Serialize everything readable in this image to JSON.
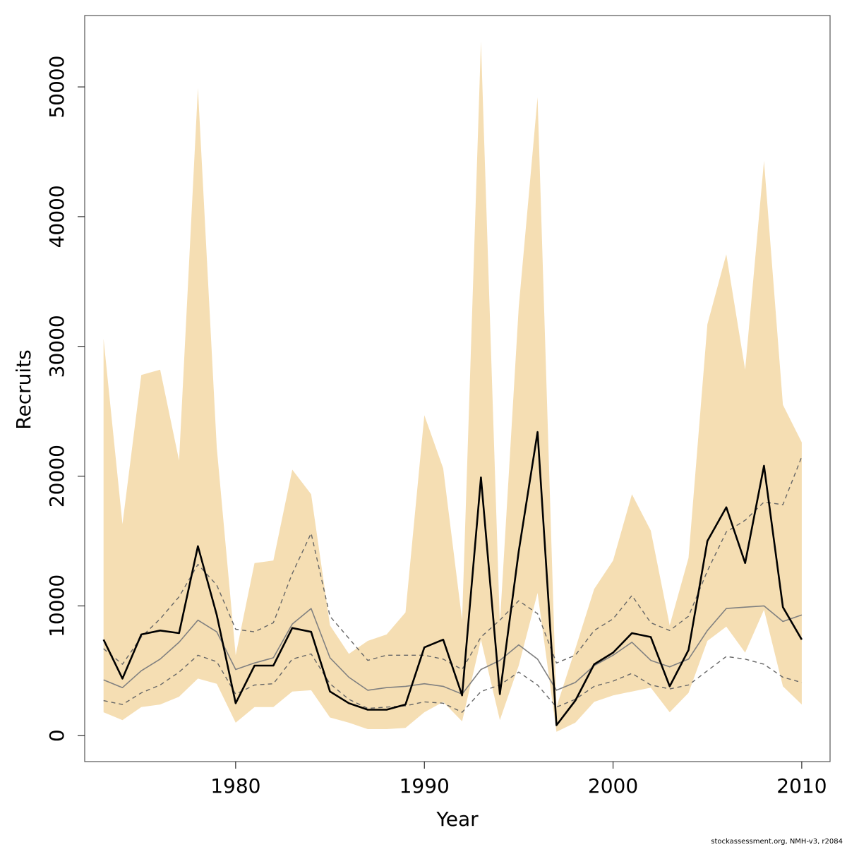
{
  "chart_data": {
    "type": "line",
    "xlabel": "Year",
    "ylabel": "Recruits",
    "xlim": [
      1972,
      2011.5
    ],
    "ylim": [
      -2000,
      55500
    ],
    "xticks": [
      1980,
      1990,
      2000,
      2010
    ],
    "yticks": [
      0,
      10000,
      20000,
      30000,
      40000,
      50000
    ],
    "grid": false,
    "x": [
      1973,
      1974,
      1975,
      1976,
      1977,
      1978,
      1979,
      1980,
      1981,
      1982,
      1983,
      1984,
      1985,
      1986,
      1987,
      1988,
      1989,
      1990,
      1991,
      1992,
      1993,
      1994,
      1995,
      1996,
      1997,
      1998,
      1999,
      2000,
      2001,
      2002,
      2003,
      2004,
      2005,
      2006,
      2007,
      2008,
      2009,
      2010
    ],
    "band": {
      "lower": [
        1800,
        1200,
        2200,
        2400,
        3000,
        4400,
        4000,
        1000,
        2200,
        2200,
        3400,
        3500,
        1400,
        1000,
        500,
        500,
        600,
        1800,
        2600,
        1100,
        7400,
        1200,
        5400,
        11000,
        300,
        1000,
        2600,
        3100,
        3400,
        3700,
        1800,
        3300,
        7300,
        8400,
        6400,
        9700,
        3800,
        2400
      ],
      "upper": [
        30600,
        16300,
        27800,
        28200,
        21200,
        49900,
        22200,
        6200,
        13300,
        13500,
        20500,
        18600,
        8500,
        6300,
        7300,
        7800,
        9500,
        24700,
        20600,
        8900,
        53500,
        8600,
        33000,
        49200,
        2200,
        6700,
        11300,
        13500,
        18600,
        15800,
        8500,
        13700,
        31700,
        37100,
        28200,
        44300,
        25500,
        22600
      ]
    },
    "series": [
      {
        "values": [
          7400,
          4400,
          7800,
          8100,
          7900,
          14600,
          9300,
          2500,
          5400,
          5400,
          8300,
          8000,
          3400,
          2500,
          2000,
          2000,
          2400,
          6800,
          7400,
          3100,
          19900,
          3200,
          14200,
          23400,
          800,
          2700,
          5500,
          6400,
          7900,
          7600,
          3800,
          6600,
          15000,
          17600,
          13300,
          20800,
          9900,
          7400
        ]
      },
      {
        "values": [
          4300,
          3700,
          5000,
          5900,
          7200,
          8900,
          8000,
          5100,
          5600,
          6000,
          8600,
          9800,
          6000,
          4500,
          3500,
          3700,
          3800,
          4000,
          3800,
          3200,
          5100,
          5800,
          7000,
          5900,
          3500,
          4100,
          5400,
          6200,
          7200,
          5800,
          5300,
          5900,
          8100,
          9800,
          9900,
          10000,
          8800,
          9300
        ]
      },
      {
        "values": [
          6700,
          5500,
          7600,
          9000,
          10700,
          13200,
          11600,
          8200,
          8000,
          8700,
          12500,
          15600,
          9200,
          7500,
          5800,
          6200,
          6200,
          6200,
          5900,
          5100,
          7600,
          8900,
          10400,
          9400,
          5600,
          6200,
          8100,
          9000,
          10800,
          8700,
          8100,
          9200,
          12700,
          15700,
          16600,
          18000,
          17800,
          21500
        ]
      },
      {
        "values": [
          2700,
          2400,
          3300,
          3900,
          4900,
          6200,
          5700,
          3200,
          3900,
          4000,
          5900,
          6300,
          4000,
          2800,
          2100,
          2200,
          2300,
          2600,
          2500,
          1800,
          3400,
          3900,
          4900,
          3900,
          2200,
          2800,
          3800,
          4200,
          4800,
          3900,
          3600,
          3900,
          5000,
          6100,
          5900,
          5500,
          4500,
          4100
        ]
      }
    ],
    "colors": {
      "band": "#f5deb3",
      "main": "#000000",
      "median": "#808080",
      "quantile": "#666666",
      "frame": "#555555"
    }
  },
  "footer": "stockassessment.org, NMH-v3, r2084"
}
